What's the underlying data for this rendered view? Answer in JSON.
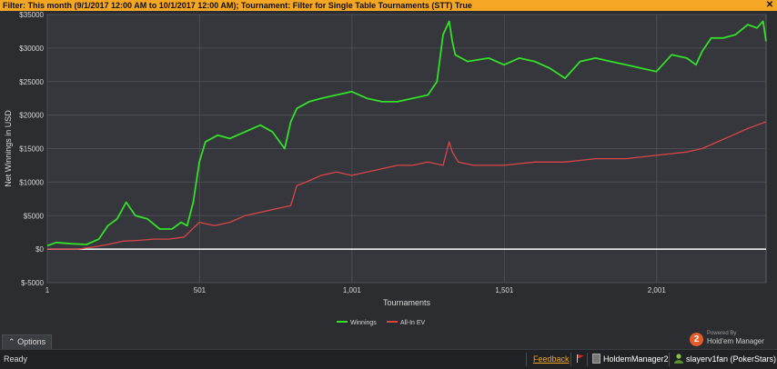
{
  "filter": {
    "text": "Filter: This month (9/1/2017 12:00 AM to 10/1/2017 12:00 AM); Tournament: Filter for Single Table Tournaments (STT) True"
  },
  "chart_data": {
    "type": "line",
    "title": "",
    "xlabel": "Tournaments",
    "ylabel": "Net Winnings in USD",
    "xlim": [
      1,
      2360
    ],
    "ylim": [
      -5000,
      35000
    ],
    "x_ticks": [
      1,
      501,
      1001,
      1501,
      2001
    ],
    "x_tick_labels": [
      "1",
      "501",
      "1,001",
      "1,501",
      "2,001"
    ],
    "y_ticks": [
      -5000,
      0,
      5000,
      10000,
      15000,
      20000,
      25000,
      30000,
      35000
    ],
    "y_tick_labels": [
      "$-5000",
      "$0",
      "$5000",
      "$10000",
      "$15000",
      "$20000",
      "$25000",
      "$30000",
      "$35000"
    ],
    "grid": true,
    "legend": "bottom-center",
    "series": [
      {
        "name": "Winnings",
        "color": "#33e02a",
        "x": [
          1,
          30,
          80,
          130,
          170,
          200,
          230,
          260,
          290,
          330,
          370,
          410,
          440,
          460,
          480,
          500,
          520,
          560,
          600,
          650,
          700,
          740,
          780,
          800,
          820,
          860,
          900,
          950,
          1000,
          1050,
          1100,
          1150,
          1200,
          1250,
          1280,
          1300,
          1320,
          1330,
          1340,
          1380,
          1450,
          1500,
          1550,
          1600,
          1650,
          1700,
          1750,
          1800,
          1850,
          1900,
          1950,
          2000,
          2050,
          2100,
          2130,
          2150,
          2180,
          2220,
          2260,
          2300,
          2330,
          2350,
          2360
        ],
        "y": [
          500,
          1000,
          800,
          700,
          1500,
          3500,
          4500,
          7000,
          5000,
          4500,
          3000,
          3000,
          4000,
          3500,
          7000,
          13000,
          16000,
          17000,
          16500,
          17500,
          18500,
          17500,
          15000,
          19000,
          21000,
          22000,
          22500,
          23000,
          23500,
          22500,
          22000,
          22000,
          22500,
          23000,
          25000,
          32000,
          34000,
          31000,
          29000,
          28000,
          28500,
          27500,
          28500,
          28000,
          27000,
          25500,
          28000,
          28500,
          28000,
          27500,
          27000,
          26500,
          29000,
          28500,
          27500,
          29500,
          31500,
          31500,
          32000,
          33500,
          33000,
          34000,
          31000
        ]
      },
      {
        "name": "All-In EV",
        "color": "#d9464a",
        "x": [
          1,
          100,
          150,
          200,
          250,
          300,
          350,
          400,
          450,
          500,
          550,
          600,
          650,
          700,
          750,
          800,
          820,
          850,
          900,
          950,
          1000,
          1050,
          1100,
          1150,
          1200,
          1250,
          1300,
          1320,
          1330,
          1350,
          1400,
          1500,
          1600,
          1700,
          1800,
          1900,
          2000,
          2100,
          2150,
          2200,
          2250,
          2300,
          2330,
          2360
        ],
        "y": [
          0,
          0,
          300,
          700,
          1200,
          1300,
          1500,
          1500,
          1800,
          4000,
          3500,
          4000,
          5000,
          5500,
          6000,
          6500,
          9500,
          10000,
          11000,
          11500,
          11000,
          11500,
          12000,
          12500,
          12500,
          13000,
          12500,
          16000,
          14500,
          13000,
          12500,
          12500,
          13000,
          13000,
          13500,
          13500,
          14000,
          14500,
          15000,
          16000,
          17000,
          18000,
          18500,
          19000
        ]
      }
    ]
  },
  "options": {
    "label": "Options",
    "icon": "caret-up-icon"
  },
  "brand": {
    "small": "Powered By",
    "big": "Hold'em Manager",
    "logo_text": "2"
  },
  "status": {
    "ready": "Ready",
    "feedback": "Feedback",
    "app": "HoldemManager2",
    "user": "slayerv1fan (PokerStars)"
  }
}
